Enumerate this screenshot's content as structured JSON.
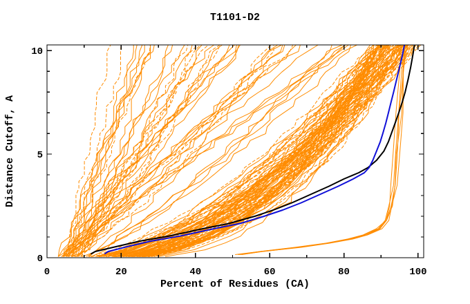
{
  "title": "T1101-D2",
  "chart_data": {
    "type": "line",
    "title": "T1101-D2",
    "xlabel": "Percent of Residues (CA)",
    "ylabel": "Distance Cutoff, A",
    "xlim": [
      0,
      101.5
    ],
    "ylim": [
      0,
      10.27
    ],
    "x_major_ticks": [
      0,
      20,
      40,
      60,
      80,
      100
    ],
    "x_minor_step": 10,
    "y_major_ticks": [
      0,
      5,
      10
    ],
    "y_minor_step": 1,
    "grid": false,
    "legend": "none",
    "ticks_direction": "inward, mirrored on all four sides of box frame",
    "series": [
      {
        "name": "model-ensemble-orange",
        "color": "#ff8c00",
        "style": "thin lines, many dashed",
        "description": "Large ensemble (~135) of predicted-model GDT curves; a steep poorly-scoring family topping out at 16-84% of residues, a dense main bundle converging to 87-100% at 10 A, and a small low outlier bundle hugging the bottom from ~52% before rising sharply near 93-97%.",
        "generator": {
          "seed": 1101,
          "cutoff_start": 0.05,
          "cutoff_step": 0.33,
          "cutoff_max": 10.27,
          "jitter_pct": 2.4,
          "families": [
            {
              "name": "steep-poor-models",
              "count": 45,
              "start_pct": [
                3,
                9
              ],
              "end_pct": [
                16,
                84
              ],
              "shape_exp": [
                0.7,
                1.25
              ],
              "dash_fraction": 0.2
            },
            {
              "name": "main-bundle",
              "count": 85,
              "start_pct": [
                3,
                12
              ],
              "end_pct": [
                87,
                99.8
              ],
              "shape_exp": [
                0.34,
                0.62
              ],
              "dash_fraction": 0.55
            },
            {
              "name": "low-outlier-bundle",
              "count": 5,
              "x_spread": 1.5,
              "dash_fraction": 0,
              "template_cutoffs": [
                0.15,
                0.3,
                0.5,
                0.7,
                0.9,
                1.1,
                1.4,
                1.8,
                2.5,
                3.5,
                5,
                7,
                9,
                10.27
              ],
              "template_pct": [
                52,
                58,
                68,
                76,
                82,
                86,
                90,
                92,
                93,
                93.8,
                94.6,
                95.4,
                96.2,
                96.6
              ]
            }
          ]
        }
      },
      {
        "name": "highlighted-model-black",
        "color": "#000000",
        "style": "2px solid",
        "points_pct_cutoff": [
          [
            11.8,
            0.18
          ],
          [
            13,
            0.3
          ],
          [
            19,
            0.55
          ],
          [
            25,
            0.8
          ],
          [
            33,
            1.05
          ],
          [
            42,
            1.4
          ],
          [
            49,
            1.65
          ],
          [
            56,
            2.0
          ],
          [
            61,
            2.3
          ],
          [
            66,
            2.65
          ],
          [
            71,
            3.05
          ],
          [
            76,
            3.45
          ],
          [
            80,
            3.8
          ],
          [
            84,
            4.1
          ],
          [
            86.5,
            4.35
          ],
          [
            88.8,
            4.7
          ],
          [
            90.8,
            5.15
          ],
          [
            92,
            5.6
          ],
          [
            92.8,
            6.0
          ],
          [
            93.8,
            6.5
          ],
          [
            94.8,
            7.0
          ],
          [
            95.7,
            7.5
          ],
          [
            96.5,
            8.0
          ],
          [
            97.3,
            8.6
          ],
          [
            98,
            9.2
          ],
          [
            98.6,
            9.8
          ],
          [
            99,
            10.27
          ]
        ]
      },
      {
        "name": "highlighted-model-blue",
        "color": "#1010d8",
        "style": "2px solid, drawn on top",
        "points_pct_cutoff": [
          [
            15.5,
            0.18
          ],
          [
            16.5,
            0.3
          ],
          [
            22,
            0.55
          ],
          [
            28,
            0.8
          ],
          [
            36,
            1.05
          ],
          [
            45,
            1.4
          ],
          [
            52,
            1.65
          ],
          [
            58.5,
            2.0
          ],
          [
            63.5,
            2.3
          ],
          [
            68.5,
            2.65
          ],
          [
            73.5,
            3.05
          ],
          [
            78.5,
            3.45
          ],
          [
            82.5,
            3.8
          ],
          [
            85.5,
            4.1
          ],
          [
            86.8,
            4.35
          ],
          [
            87.8,
            4.7
          ],
          [
            88.8,
            5.15
          ],
          [
            89.8,
            5.6
          ],
          [
            90.5,
            6.0
          ],
          [
            91.3,
            6.5
          ],
          [
            92,
            7.0
          ],
          [
            92.7,
            7.5
          ],
          [
            93.4,
            8.0
          ],
          [
            94.2,
            8.6
          ],
          [
            95,
            9.2
          ],
          [
            95.8,
            9.8
          ],
          [
            96.3,
            10.27
          ]
        ],
        "crossing_note": "blue is right of black below ~4.3 A and left of black above it; they cross near (86.5%, 4.3 A)"
      }
    ]
  },
  "colors": {
    "background": "#ffffff",
    "frame": "#000000",
    "text": "#000000",
    "ensemble": "#ff8c00",
    "highlight_black": "#000000",
    "highlight_blue": "#1010d8"
  }
}
